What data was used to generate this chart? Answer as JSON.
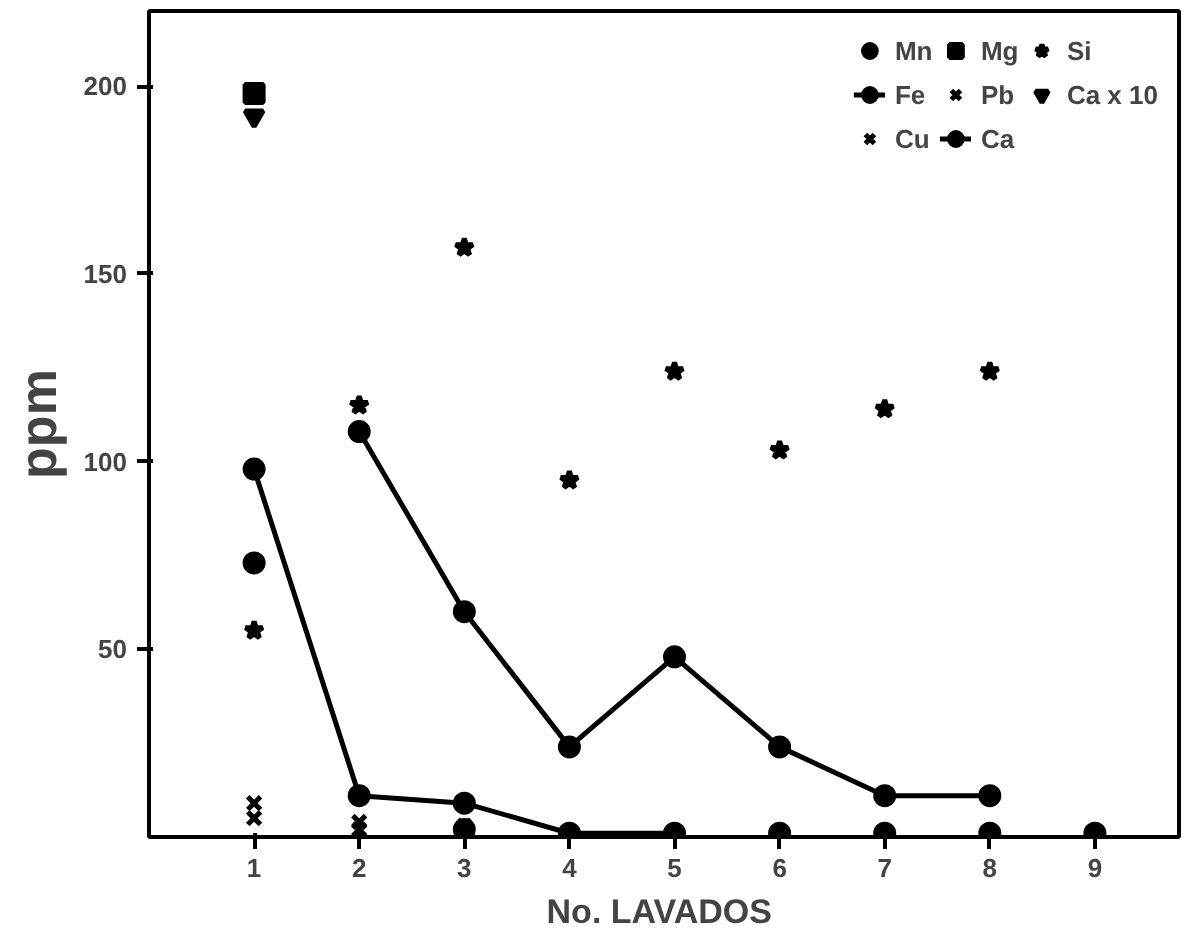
{
  "chart_data": {
    "type": "scatter",
    "xlabel": "No.  LAVADOS",
    "ylabel": "ppm",
    "x": [
      1,
      2,
      3,
      4,
      5,
      6,
      7,
      8,
      9
    ],
    "xlim": [
      0,
      9.8
    ],
    "xticks": [
      1,
      2,
      3,
      4,
      5,
      6,
      7,
      8,
      9
    ],
    "ylim": [
      0,
      220
    ],
    "yticks": [
      50,
      100,
      150,
      200
    ],
    "grid": false,
    "legend": "top right",
    "series": [
      {
        "name": "Mn",
        "color": "#000000",
        "marker": "circle",
        "values": [
          73,
          null,
          2,
          null,
          null,
          1,
          1,
          1,
          1
        ]
      },
      {
        "name": "Fe",
        "color": "#000000",
        "type": "line",
        "marker": "circle",
        "values": [
          98,
          11,
          9,
          1,
          1,
          null,
          null,
          null,
          null
        ]
      },
      {
        "name": "Cu",
        "color": "#000000",
        "marker": "cross",
        "values": [
          5,
          2,
          null,
          null,
          null,
          null,
          null,
          null,
          null
        ]
      },
      {
        "name": "Mg",
        "color": "#000000",
        "marker": "square",
        "values": [
          198,
          null,
          null,
          null,
          null,
          null,
          null,
          null,
          null
        ]
      },
      {
        "name": "Pb",
        "color": "#000000",
        "marker": "cross",
        "values": [
          9,
          4,
          3,
          null,
          null,
          null,
          null,
          null,
          null
        ]
      },
      {
        "name": "Ca",
        "color": "#000000",
        "type": "line",
        "marker": "circle",
        "values": [
          null,
          108,
          60,
          24,
          48,
          24,
          11,
          11,
          null
        ]
      },
      {
        "name": "Si",
        "color": "#000000",
        "marker": "star",
        "values": [
          55,
          115,
          157,
          95,
          124,
          103,
          114,
          124,
          null
        ]
      },
      {
        "name": "Ca x 10",
        "color": "#000000",
        "marker": "triangle",
        "values": [
          192,
          null,
          null,
          null,
          null,
          null,
          null,
          null,
          null
        ]
      }
    ]
  }
}
